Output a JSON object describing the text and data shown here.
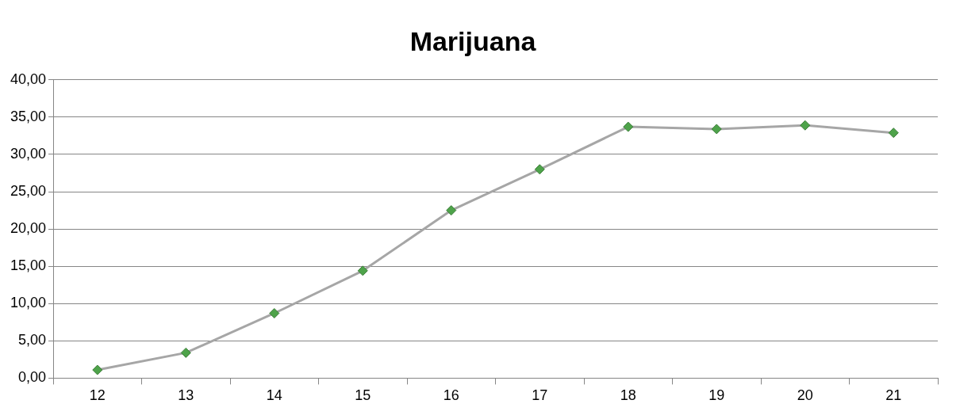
{
  "chart_data": {
    "type": "line",
    "title": "Marijuana",
    "categories": [
      "12",
      "13",
      "14",
      "15",
      "16",
      "17",
      "18",
      "19",
      "20",
      "21"
    ],
    "series": [
      {
        "color": "#a6a6a6",
        "colors": [
          "#4ea34a",
          "#4ea34a",
          "#4ea34a",
          "#4ea34a",
          "#4ea34a",
          "#4ea34a",
          "#4ea34a",
          "#4ea34a",
          "#4ea34a",
          "#4ea34a"
        ],
        "values": [
          1.1,
          3.4,
          8.7,
          14.4,
          22.5,
          28.0,
          33.7,
          33.4,
          33.9,
          32.9
        ]
      }
    ],
    "ylim": [
      0,
      40
    ],
    "yticks": [
      {
        "value": 0,
        "label": "0,00"
      },
      {
        "value": 5,
        "label": "5,00"
      },
      {
        "value": 10,
        "label": "10,00"
      },
      {
        "value": 15,
        "label": "15,00"
      },
      {
        "value": 20,
        "label": "20,00"
      },
      {
        "value": 25,
        "label": "25,00"
      },
      {
        "value": 30,
        "label": "30,00"
      },
      {
        "value": 35,
        "label": "35,00"
      },
      {
        "value": 40,
        "label": "40,00"
      }
    ],
    "grid": "y",
    "legend": false,
    "marker": "diamond",
    "line_style": "solid"
  }
}
